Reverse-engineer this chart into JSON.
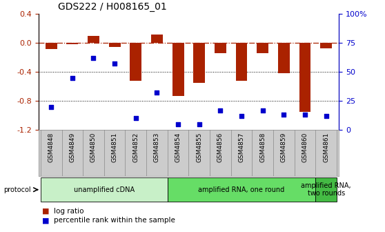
{
  "title": "GDS222 / H008165_01",
  "samples": [
    "GSM4848",
    "GSM4849",
    "GSM4850",
    "GSM4851",
    "GSM4852",
    "GSM4853",
    "GSM4854",
    "GSM4855",
    "GSM4856",
    "GSM4857",
    "GSM4858",
    "GSM4859",
    "GSM4860",
    "GSM4861"
  ],
  "log_ratio": [
    -0.08,
    -0.02,
    0.1,
    -0.06,
    -0.52,
    0.12,
    -0.73,
    -0.55,
    -0.14,
    -0.52,
    -0.14,
    -0.42,
    -0.95,
    -0.07
  ],
  "percentile_rank": [
    20,
    45,
    62,
    57,
    10,
    32,
    5,
    5,
    17,
    12,
    17,
    13,
    13,
    12
  ],
  "protocol_groups": [
    {
      "label": "unamplified cDNA",
      "start": 0,
      "end": 5,
      "color": "#c8f0c8"
    },
    {
      "label": "amplified RNA, one round",
      "start": 6,
      "end": 12,
      "color": "#66dd66"
    },
    {
      "label": "amplified RNA,\ntwo rounds",
      "start": 13,
      "end": 13,
      "color": "#44bb44"
    }
  ],
  "bar_color": "#aa2200",
  "dot_color": "#0000cc",
  "ylim_left": [
    -1.2,
    0.4
  ],
  "ylim_right": [
    0,
    100
  ],
  "yticks_left": [
    -1.2,
    -0.8,
    -0.4,
    0.0,
    0.4
  ],
  "yticks_right": [
    0,
    25,
    50,
    75,
    100
  ],
  "ytick_labels_right": [
    "0",
    "25",
    "50",
    "75",
    "100%"
  ],
  "hline_y": 0.0,
  "dotted_lines": [
    -0.4,
    -0.8
  ],
  "bar_width": 0.55,
  "background_color": "#ffffff",
  "label_bg_color": "#cccccc",
  "sample_label_fontsize": 6.5,
  "protocol_fontsize": 7.0,
  "legend_fontsize": 7.5,
  "title_fontsize": 10
}
